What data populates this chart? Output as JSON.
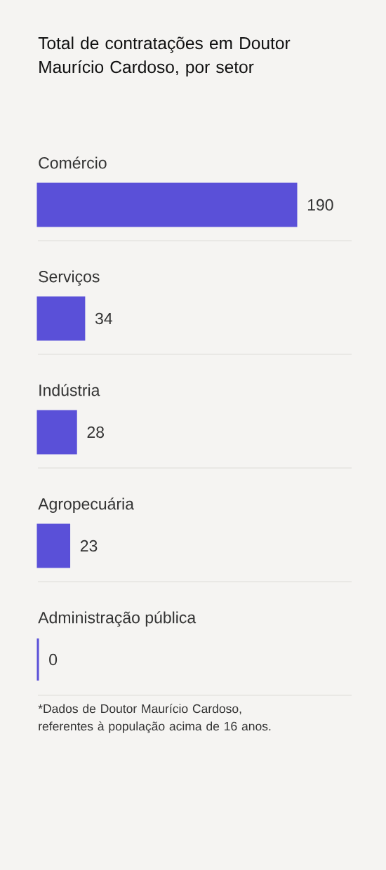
{
  "chart_data": {
    "type": "bar",
    "orientation": "horizontal",
    "title": "Total de contratações em Doutor Maurício Cardoso, por setor",
    "categories": [
      "Comércio",
      "Serviços",
      "Indústria",
      "Agropecuária",
      "Administração pública"
    ],
    "values": [
      190,
      34,
      28,
      23,
      0
    ],
    "color": "#5a50d8",
    "data_labels": true,
    "grid": "y",
    "annotations": [
      "*Dados de Doutor Maurício Cardoso, referentes à população acima de 16 anos."
    ]
  }
}
